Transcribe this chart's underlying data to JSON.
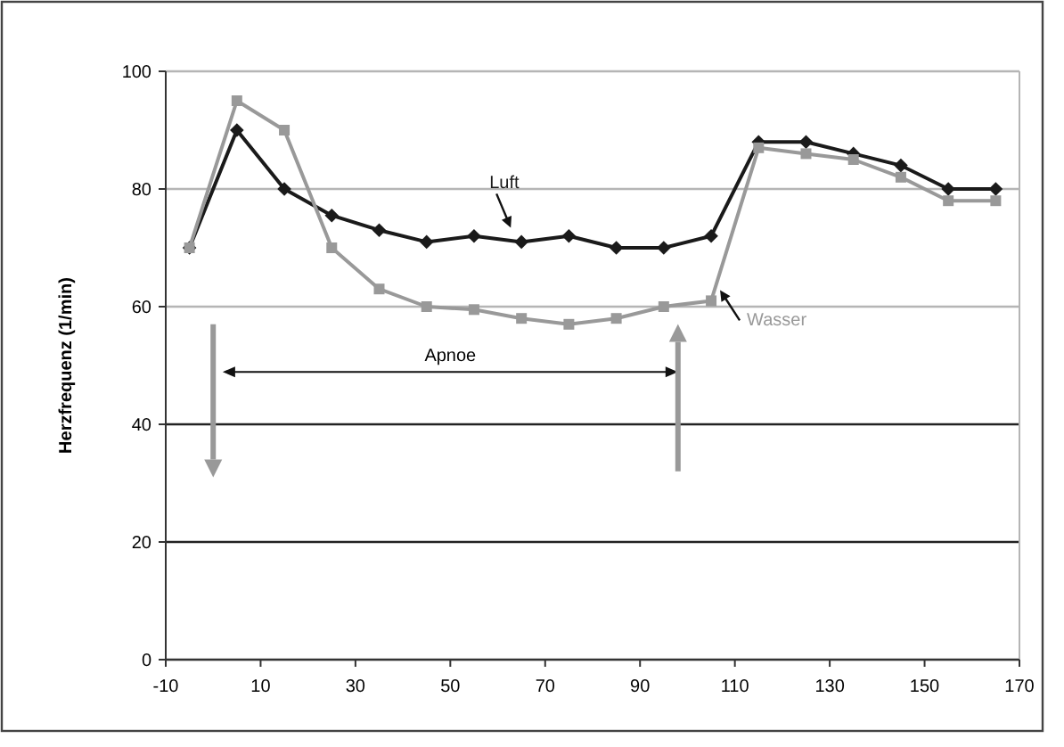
{
  "chart_data": {
    "type": "line",
    "ylabel": "Herzfrequenz (1/min)",
    "x": [
      -5,
      5,
      15,
      25,
      35,
      45,
      55,
      65,
      75,
      85,
      95,
      105,
      115,
      125,
      135,
      145,
      155,
      165
    ],
    "series": [
      {
        "name": "Luft",
        "color": "#1a1a1a",
        "marker": "diamond",
        "values": [
          70,
          90,
          80,
          75.5,
          73,
          71,
          72,
          71,
          72,
          70,
          70,
          72,
          88,
          88,
          86,
          84,
          80,
          80
        ]
      },
      {
        "name": "Wasser",
        "color": "#999999",
        "marker": "square",
        "values": [
          70,
          95,
          90,
          70,
          63,
          60,
          59.5,
          58,
          57,
          58,
          60,
          61,
          87,
          86,
          85,
          82,
          78,
          78
        ]
      }
    ],
    "xlim": [
      -10,
      170
    ],
    "xticks": [
      -10,
      10,
      30,
      50,
      70,
      90,
      110,
      130,
      150,
      170
    ],
    "ylim": [
      0,
      100
    ],
    "yticks": [
      0,
      20,
      40,
      60,
      80,
      100
    ],
    "grid": "y",
    "line_style": "solid",
    "annotations": [
      "Apnoe"
    ]
  }
}
